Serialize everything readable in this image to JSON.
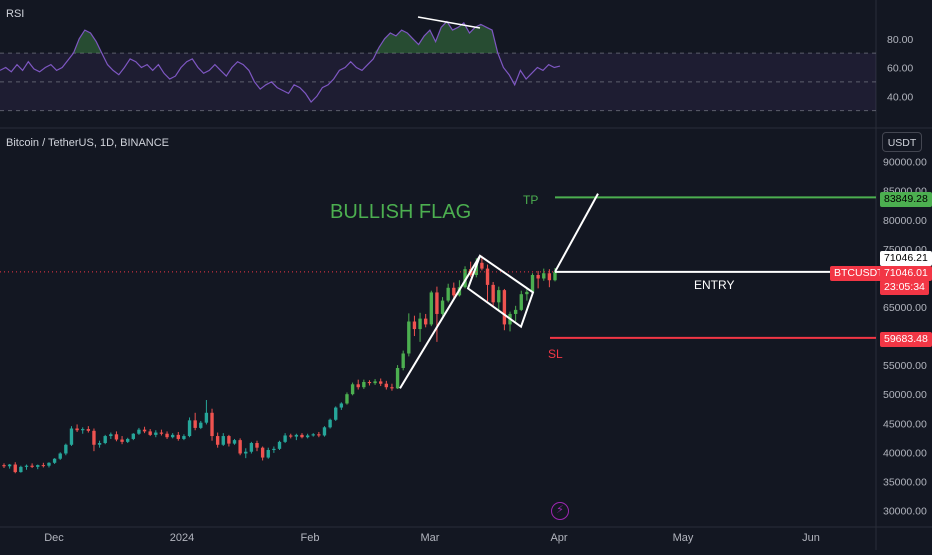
{
  "rsi_panel": {
    "label": "RSI",
    "axis_ticks": [
      "80.00",
      "60.00",
      "40.00"
    ]
  },
  "price_panel": {
    "symbol_label": "Bitcoin / TetherUS, 1D, BINANCE",
    "currency_button": "USDT",
    "axis_ticks": [
      "90000.00",
      "85000.00",
      "80000.00",
      "75000.00",
      "65000.00",
      "55000.00",
      "50000.00",
      "45000.00",
      "40000.00",
      "35000.00",
      "30000.00"
    ],
    "date_labels": [
      "Dec",
      "2024",
      "Feb",
      "Mar",
      "Apr",
      "May",
      "Jun"
    ]
  },
  "annotations": {
    "title": "BULLISH FLAG",
    "tp_label": "TP",
    "sl_label": "SL",
    "entry_label": "ENTRY"
  },
  "price_tags": {
    "tp_value": "83849.28",
    "crosshair_value": "71046.21",
    "symbol_tag": "BTCUSDT",
    "last_price": "71046.01",
    "countdown": "23:05:34",
    "sl_value": "59683.48"
  },
  "colors": {
    "background": "#131722",
    "up": "#26a69a",
    "up_bright": "#4caf50",
    "down": "#ef5350",
    "tp_line": "#4caf50",
    "sl_line": "#f23645",
    "rsi_line": "#7e57c2",
    "drawing": "#ffffff"
  },
  "chart_data": [
    {
      "type": "line",
      "title": "RSI",
      "ylim": [
        20,
        100
      ],
      "reference_lines": [
        70,
        50,
        30
      ],
      "values": [
        58,
        60,
        57,
        62,
        58,
        64,
        59,
        57,
        60,
        62,
        58,
        60,
        65,
        70,
        80,
        86,
        84,
        78,
        70,
        62,
        58,
        55,
        60,
        66,
        64,
        60,
        62,
        58,
        62,
        56,
        52,
        54,
        60,
        64,
        66,
        60,
        56,
        58,
        62,
        58,
        54,
        60,
        64,
        62,
        58,
        50,
        45,
        48,
        50,
        46,
        44,
        42,
        48,
        46,
        42,
        36,
        40,
        46,
        48,
        52,
        58,
        60,
        64,
        60,
        58,
        62,
        66,
        74,
        80,
        84,
        82,
        86,
        84,
        80,
        76,
        82,
        86,
        78,
        88,
        92,
        86,
        88,
        91,
        84,
        88,
        90,
        88,
        86,
        70,
        60,
        55,
        48,
        58,
        52,
        56,
        60,
        58,
        62,
        60,
        61
      ],
      "highlighted_above": 70
    },
    {
      "type": "candlestick",
      "title": "Bitcoin / TetherUS, 1D, BINANCE",
      "x_start": "2023-11-15",
      "x_labels": [
        "Dec",
        "2024",
        "Feb",
        "Mar",
        "Apr",
        "May",
        "Jun"
      ],
      "ylim": [
        27500,
        92000
      ],
      "ohlc": [
        [
          37800,
          38100,
          37300,
          37600
        ],
        [
          37600,
          38000,
          37200,
          37900
        ],
        [
          37900,
          38300,
          36400,
          36600
        ],
        [
          36600,
          37700,
          36500,
          37500
        ],
        [
          37500,
          37900,
          37000,
          37700
        ],
        [
          37700,
          38100,
          37300,
          37500
        ],
        [
          37500,
          37900,
          37100,
          37800
        ],
        [
          37800,
          38200,
          37400,
          37700
        ],
        [
          37700,
          38300,
          37400,
          38200
        ],
        [
          38200,
          39000,
          38000,
          38900
        ],
        [
          38900,
          40000,
          38700,
          39800
        ],
        [
          39800,
          41500,
          39500,
          41300
        ],
        [
          41300,
          44500,
          41100,
          44100
        ],
        [
          44100,
          44800,
          43500,
          43800
        ],
        [
          43800,
          44300,
          43200,
          44000
        ],
        [
          44000,
          44500,
          43400,
          43700
        ],
        [
          43700,
          44100,
          40200,
          41300
        ],
        [
          41300,
          42000,
          40800,
          41600
        ],
        [
          41600,
          43000,
          41400,
          42800
        ],
        [
          42800,
          43400,
          42300,
          43100
        ],
        [
          43100,
          43600,
          41900,
          42200
        ],
        [
          42200,
          42800,
          41400,
          41800
        ],
        [
          41800,
          42500,
          41600,
          42300
        ],
        [
          42300,
          43300,
          42100,
          43200
        ],
        [
          43200,
          44200,
          43000,
          43900
        ],
        [
          43900,
          44400,
          43300,
          43600
        ],
        [
          43600,
          44000,
          42800,
          43000
        ],
        [
          43000,
          43800,
          42600,
          43400
        ],
        [
          43400,
          43900,
          42900,
          43200
        ],
        [
          43200,
          43600,
          42300,
          42600
        ],
        [
          42600,
          43300,
          42400,
          43000
        ],
        [
          43000,
          43500,
          42000,
          42300
        ],
        [
          42300,
          43100,
          42100,
          42800
        ],
        [
          42800,
          46000,
          42600,
          45500
        ],
        [
          45500,
          46800,
          43800,
          44200
        ],
        [
          44200,
          45400,
          44000,
          45100
        ],
        [
          45100,
          49000,
          44800,
          46800
        ],
        [
          46800,
          47500,
          42000,
          42800
        ],
        [
          42800,
          43400,
          40800,
          41300
        ],
        [
          41300,
          43300,
          41100,
          42800
        ],
        [
          42800,
          43000,
          41000,
          41500
        ],
        [
          41500,
          42300,
          41300,
          42100
        ],
        [
          42100,
          42400,
          39500,
          39800
        ],
        [
          39800,
          40700,
          39000,
          40100
        ],
        [
          40100,
          41800,
          39800,
          41600
        ],
        [
          41600,
          42000,
          40200,
          40800
        ],
        [
          40800,
          41000,
          38600,
          39100
        ],
        [
          39100,
          40800,
          38900,
          40400
        ],
        [
          40400,
          41000,
          39900,
          40600
        ],
        [
          40600,
          42000,
          40400,
          41800
        ],
        [
          41800,
          43300,
          41600,
          42900
        ],
        [
          42900,
          43200,
          42400,
          42700
        ],
        [
          42700,
          43200,
          42100,
          43000
        ],
        [
          43000,
          43300,
          42400,
          42600
        ],
        [
          42600,
          43200,
          42400,
          42900
        ],
        [
          42900,
          43300,
          42700,
          43100
        ],
        [
          43100,
          43500,
          42600,
          42900
        ],
        [
          42900,
          44500,
          42700,
          44300
        ],
        [
          44300,
          45800,
          44100,
          45600
        ],
        [
          45600,
          47900,
          45400,
          47700
        ],
        [
          47700,
          48600,
          47300,
          48400
        ],
        [
          48400,
          50300,
          48200,
          50000
        ],
        [
          50000,
          52000,
          49800,
          51700
        ],
        [
          51700,
          52500,
          50800,
          51200
        ],
        [
          51200,
          52500,
          50900,
          52100
        ],
        [
          52100,
          52400,
          51500,
          51900
        ],
        [
          51900,
          52600,
          51600,
          52200
        ],
        [
          52200,
          52700,
          51400,
          51800
        ],
        [
          51800,
          52300,
          50800,
          51200
        ],
        [
          51200,
          51800,
          50600,
          51000
        ],
        [
          51000,
          55000,
          50900,
          54500
        ],
        [
          54500,
          57500,
          54100,
          57000
        ],
        [
          57000,
          63900,
          56500,
          62500
        ],
        [
          62500,
          63500,
          60000,
          61200
        ],
        [
          61200,
          64000,
          59000,
          63000
        ],
        [
          63000,
          63800,
          61500,
          62000
        ],
        [
          62000,
          67800,
          61700,
          67500
        ],
        [
          67500,
          68500,
          59000,
          63800
        ],
        [
          63800,
          66700,
          63500,
          66100
        ],
        [
          66100,
          69000,
          65800,
          68300
        ],
        [
          68300,
          69200,
          66300,
          67000
        ],
        [
          67000,
          69600,
          66800,
          68400
        ],
        [
          68400,
          72000,
          68200,
          71500
        ],
        [
          71500,
          72800,
          70200,
          70500
        ],
        [
          70500,
          73400,
          70100,
          72600
        ],
        [
          72600,
          73800,
          71300,
          71600
        ],
        [
          71600,
          72300,
          66000,
          68800
        ],
        [
          68800,
          69300,
          65200,
          65800
        ],
        [
          65800,
          68500,
          64400,
          67900
        ],
        [
          67900,
          68100,
          61000,
          62000
        ],
        [
          62000,
          64200,
          60800,
          63800
        ],
        [
          63800,
          65200,
          62500,
          64500
        ],
        [
          64500,
          67800,
          64300,
          67200
        ],
        [
          67200,
          68300,
          66100,
          67600
        ],
        [
          67600,
          70800,
          67300,
          70500
        ],
        [
          70500,
          71200,
          68200,
          69900
        ],
        [
          69900,
          71600,
          69500,
          70800
        ],
        [
          70800,
          71500,
          68400,
          69600
        ],
        [
          69600,
          71700,
          69400,
          71046
        ]
      ]
    }
  ]
}
